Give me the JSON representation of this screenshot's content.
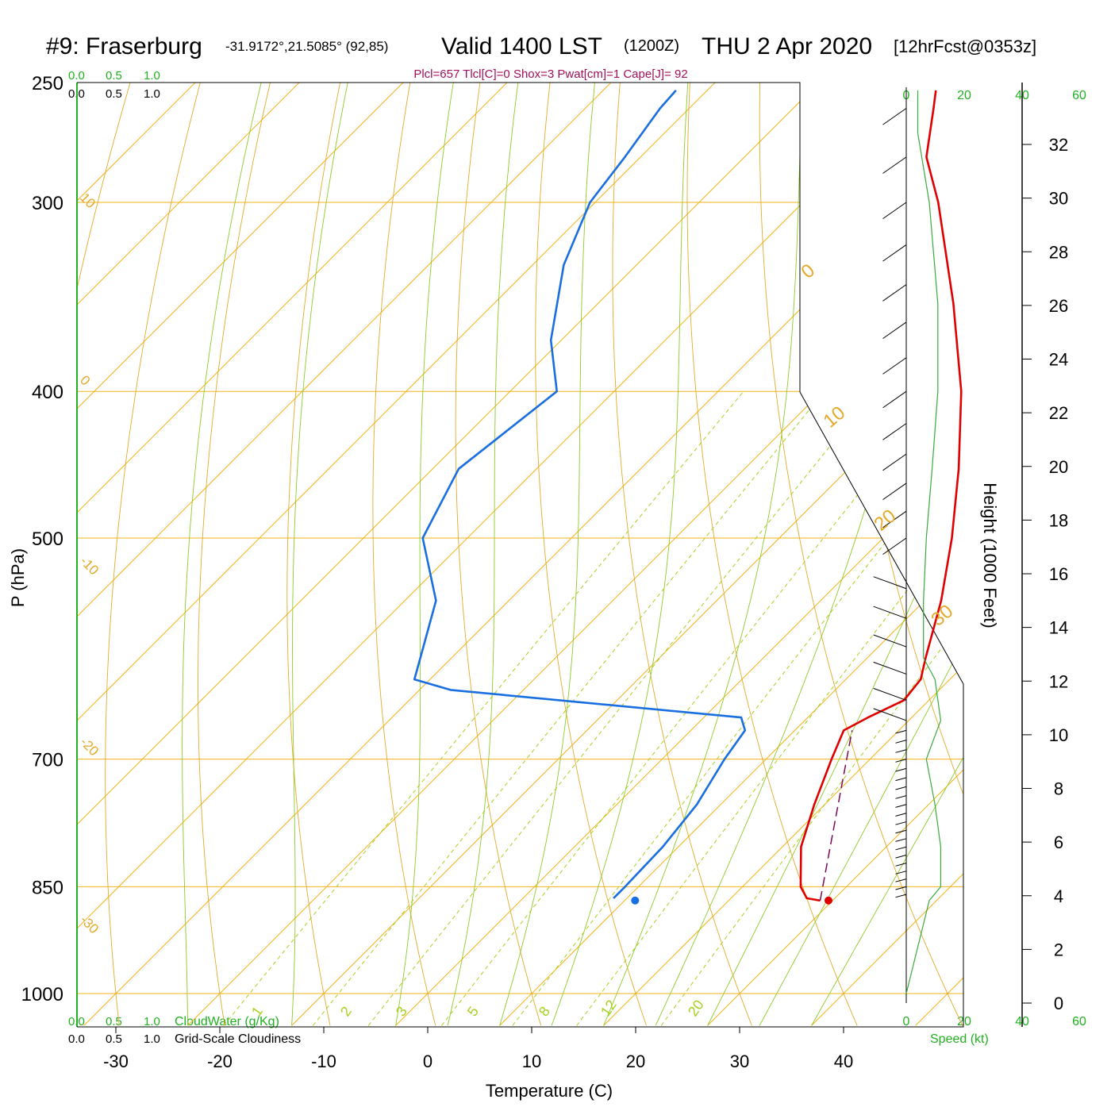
{
  "header": {
    "station": "#9: Fraserburg",
    "coords": "-31.9172°,21.5085° (92,85)",
    "valid": "Valid 1400 LST",
    "utc": "(1200Z)",
    "date": "THU 2 Apr 2020",
    "forecast": "[12hrFcst@0353z]",
    "indices": "Plcl=657 Tlcl[C]=0 Shox=3 Pwat[cm]=1 Cape[J]= 92"
  },
  "colors": {
    "temperature": "#e00000",
    "dewpoint": "#1a6fe0",
    "parcel": "#7a0a55",
    "isobar": "#f2b31a",
    "dry_adiabat": "#e4a92a",
    "moist_adiabat": "#8ccc2a",
    "mixing_ratio": "#a6d11e",
    "green_text": "#20b020",
    "indices_text": "#a0105a",
    "wind": "#000000",
    "speed_profile": "#3aaa3a"
  },
  "top_scales": {
    "cloudwater": [
      "0.0",
      "0.5",
      "1.0"
    ],
    "cloudiness": [
      "0.0",
      "0.5",
      "1.0"
    ]
  },
  "bottom_scales": {
    "cloudwater": [
      "0.0",
      "0.5",
      "1.0"
    ],
    "cloudwater_label": "CloudWater (g/Kg)",
    "cloudiness": [
      "0.0",
      "0.5",
      "1.0"
    ],
    "cloudiness_label": "Grid-Scale Cloudiness"
  },
  "speed_axis": {
    "ticks": [
      "0",
      "20",
      "40",
      "60"
    ],
    "label": "Speed (kt)"
  },
  "chart_data": {
    "type": "skew-t log-p sounding",
    "xlabel": "Temperature (C)",
    "ylabel": "P (hPa)",
    "y2label": "Height (1000 Feet)",
    "x_ticks": [
      -30,
      -20,
      -10,
      0,
      10,
      20,
      30,
      40
    ],
    "p_ticks": [
      250,
      300,
      400,
      500,
      700,
      850,
      1000
    ],
    "height_ticks": [
      0,
      2,
      4,
      6,
      8,
      10,
      12,
      14,
      16,
      18,
      20,
      22,
      24,
      26,
      28,
      30,
      32
    ],
    "dry_adiabat_labels": [
      "10",
      "0",
      "-10",
      "-20",
      "-30",
      "0",
      "10",
      "20",
      "30"
    ],
    "mixing_ratio_labels": [
      "1",
      "2",
      "3",
      "5",
      "8",
      "12",
      "20"
    ],
    "surface_temperature_c": 29.6,
    "surface_dewpoint_c": 11.0,
    "surface_pressure_hpa": 868,
    "temperature_profile": [
      {
        "p": 868,
        "t": 28.8
      },
      {
        "p": 865,
        "t": 27.3
      },
      {
        "p": 850,
        "t": 25.6
      },
      {
        "p": 800,
        "t": 21.8
      },
      {
        "p": 750,
        "t": 19.0
      },
      {
        "p": 700,
        "t": 16.3
      },
      {
        "p": 670,
        "t": 14.7
      },
      {
        "p": 657,
        "t": 15.8
      },
      {
        "p": 640,
        "t": 17.6
      },
      {
        "p": 620,
        "t": 17.2
      },
      {
        "p": 600,
        "t": 15.6
      },
      {
        "p": 550,
        "t": 11.6
      },
      {
        "p": 500,
        "t": 6.6
      },
      {
        "p": 450,
        "t": 0.6
      },
      {
        "p": 400,
        "t": -6.6
      },
      {
        "p": 350,
        "t": -15.8
      },
      {
        "p": 300,
        "t": -27.0
      },
      {
        "p": 280,
        "t": -32.5
      },
      {
        "p": 260,
        "t": -36.5
      },
      {
        "p": 253,
        "t": -38.0
      }
    ],
    "dewpoint_profile": [
      {
        "p": 865,
        "t": 8.7
      },
      {
        "p": 850,
        "t": 8.7
      },
      {
        "p": 800,
        "t": 8.5
      },
      {
        "p": 750,
        "t": 7.7
      },
      {
        "p": 700,
        "t": 6.0
      },
      {
        "p": 670,
        "t": 5.2
      },
      {
        "p": 657,
        "t": 3.6
      },
      {
        "p": 630,
        "t": -27.0
      },
      {
        "p": 620,
        "t": -31.5
      },
      {
        "p": 600,
        "t": -33.0
      },
      {
        "p": 550,
        "t": -37.0
      },
      {
        "p": 500,
        "t": -44.3
      },
      {
        "p": 450,
        "t": -47.5
      },
      {
        "p": 400,
        "t": -45.5
      },
      {
        "p": 370,
        "t": -51.0
      },
      {
        "p": 330,
        "t": -57.0
      },
      {
        "p": 300,
        "t": -60.5
      },
      {
        "p": 280,
        "t": -61.5
      },
      {
        "p": 260,
        "t": -62.8
      },
      {
        "p": 253,
        "t": -63.0
      }
    ],
    "parcel_path": [
      {
        "p": 868,
        "t": 28.8
      },
      {
        "p": 670,
        "t": 15.5
      }
    ],
    "wind_profile": [
      {
        "p": 1000,
        "speed_kt": 0
      },
      {
        "p": 868,
        "speed_kt": 8
      },
      {
        "p": 850,
        "speed_kt": 12
      },
      {
        "p": 800,
        "speed_kt": 12
      },
      {
        "p": 750,
        "speed_kt": 10
      },
      {
        "p": 700,
        "speed_kt": 7
      },
      {
        "p": 660,
        "speed_kt": 12
      },
      {
        "p": 620,
        "speed_kt": 10
      },
      {
        "p": 600,
        "speed_kt": 6
      },
      {
        "p": 550,
        "speed_kt": 6
      },
      {
        "p": 500,
        "speed_kt": 7
      },
      {
        "p": 450,
        "speed_kt": 9
      },
      {
        "p": 400,
        "speed_kt": 11
      },
      {
        "p": 350,
        "speed_kt": 11
      },
      {
        "p": 300,
        "speed_kt": 8
      },
      {
        "p": 270,
        "speed_kt": 4
      },
      {
        "p": 253,
        "speed_kt": 4
      }
    ]
  }
}
